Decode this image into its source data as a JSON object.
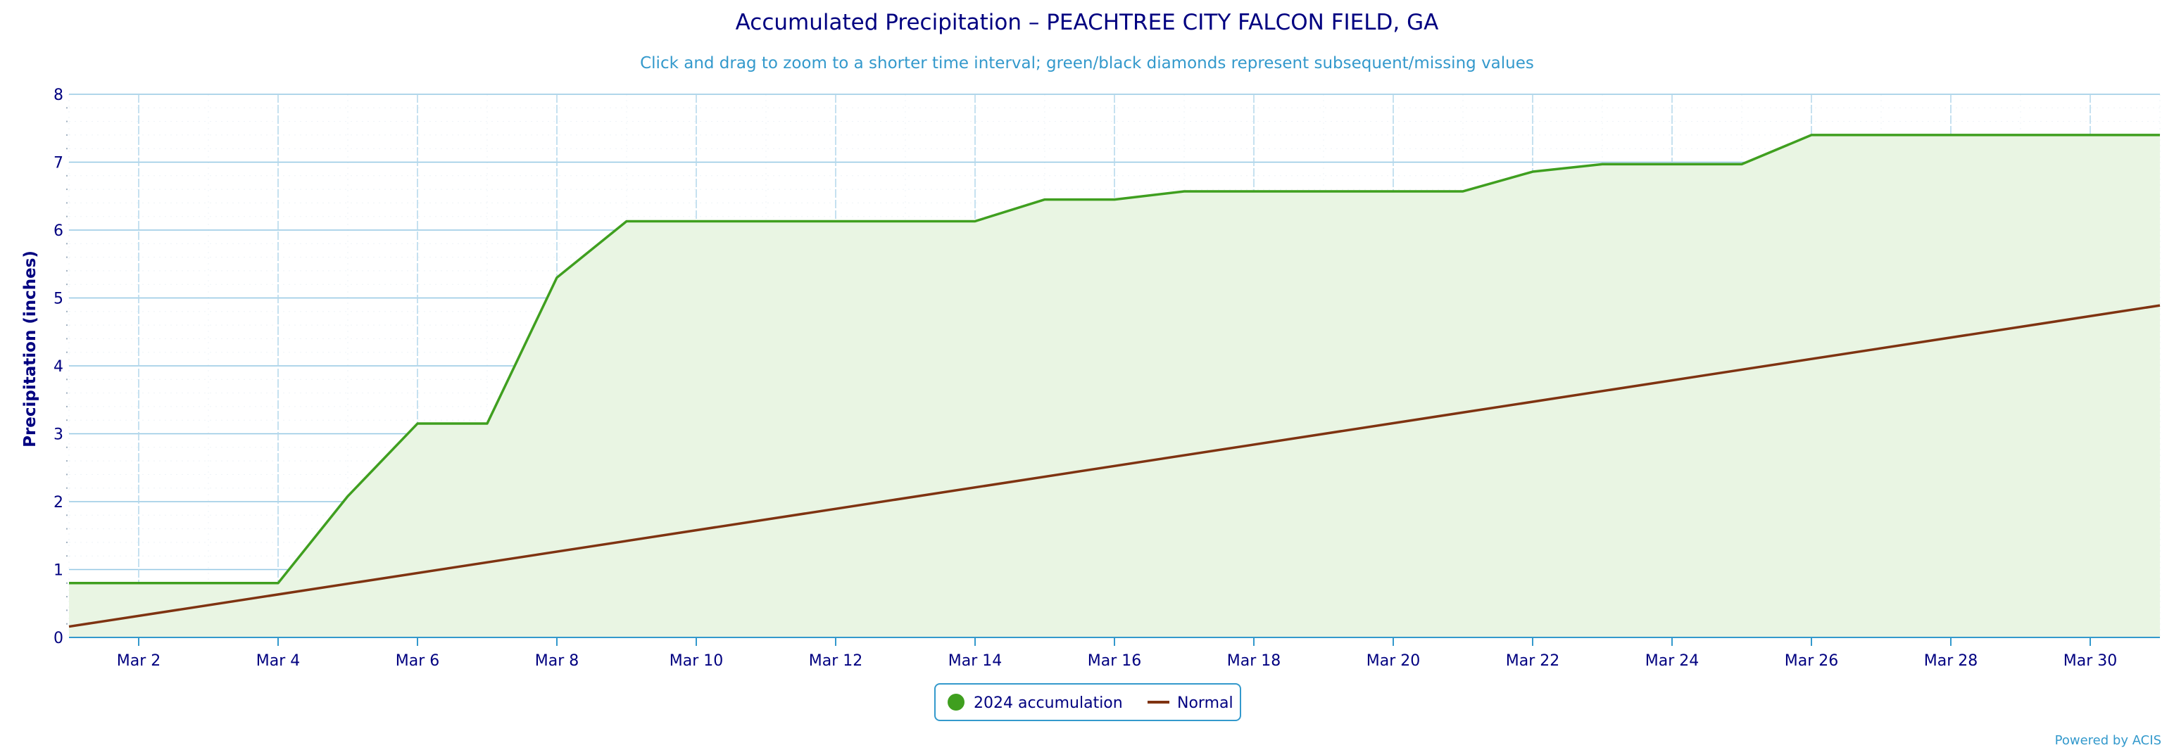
{
  "chart_data": {
    "type": "line",
    "title": "Accumulated Precipitation – PEACHTREE CITY FALCON FIELD, GA",
    "subtitle": "Click and drag to zoom to a shorter time interval; green/black diamonds represent subsequent/missing values",
    "xlabel": "",
    "ylabel": "Precipitation (inches)",
    "ylim": [
      0,
      8
    ],
    "yticks": [
      "0",
      "1",
      "2",
      "3",
      "4",
      "5",
      "6",
      "7",
      "8"
    ],
    "x_range_days": [
      1,
      31
    ],
    "xticks": [
      {
        "day": 2,
        "label": "Mar 2"
      },
      {
        "day": 4,
        "label": "Mar 4"
      },
      {
        "day": 6,
        "label": "Mar 6"
      },
      {
        "day": 8,
        "label": "Mar 8"
      },
      {
        "day": 10,
        "label": "Mar 10"
      },
      {
        "day": 12,
        "label": "Mar 12"
      },
      {
        "day": 14,
        "label": "Mar 14"
      },
      {
        "day": 16,
        "label": "Mar 16"
      },
      {
        "day": 18,
        "label": "Mar 18"
      },
      {
        "day": 20,
        "label": "Mar 20"
      },
      {
        "day": 22,
        "label": "Mar 22"
      },
      {
        "day": 24,
        "label": "Mar 24"
      },
      {
        "day": 26,
        "label": "Mar 26"
      },
      {
        "day": 28,
        "label": "Mar 28"
      },
      {
        "day": 30,
        "label": "Mar 30"
      }
    ],
    "grid": true,
    "legend_position": "bottom-center",
    "series": [
      {
        "name": "2024 accumulation",
        "color": "#3f9f1f",
        "fill": "#e9f5e3",
        "style": "area",
        "x": [
          1,
          2,
          3,
          4,
          5,
          6,
          7,
          8,
          9,
          10,
          11,
          12,
          13,
          14,
          15,
          16,
          17,
          18,
          19,
          20,
          21,
          22,
          23,
          24,
          25,
          26,
          27,
          28,
          29,
          30,
          31
        ],
        "values": [
          0.8,
          0.8,
          0.8,
          0.8,
          2.08,
          3.15,
          3.15,
          5.3,
          6.13,
          6.13,
          6.13,
          6.13,
          6.13,
          6.13,
          6.45,
          6.45,
          6.57,
          6.57,
          6.57,
          6.57,
          6.57,
          6.86,
          6.97,
          6.97,
          6.97,
          7.4,
          7.4,
          7.4,
          7.4,
          7.4,
          7.4
        ]
      },
      {
        "name": "Normal",
        "color": "#7f3311",
        "style": "line",
        "x": [
          1,
          31
        ],
        "values": [
          0.16,
          4.89
        ]
      }
    ],
    "credit": "Powered by ACIS"
  }
}
